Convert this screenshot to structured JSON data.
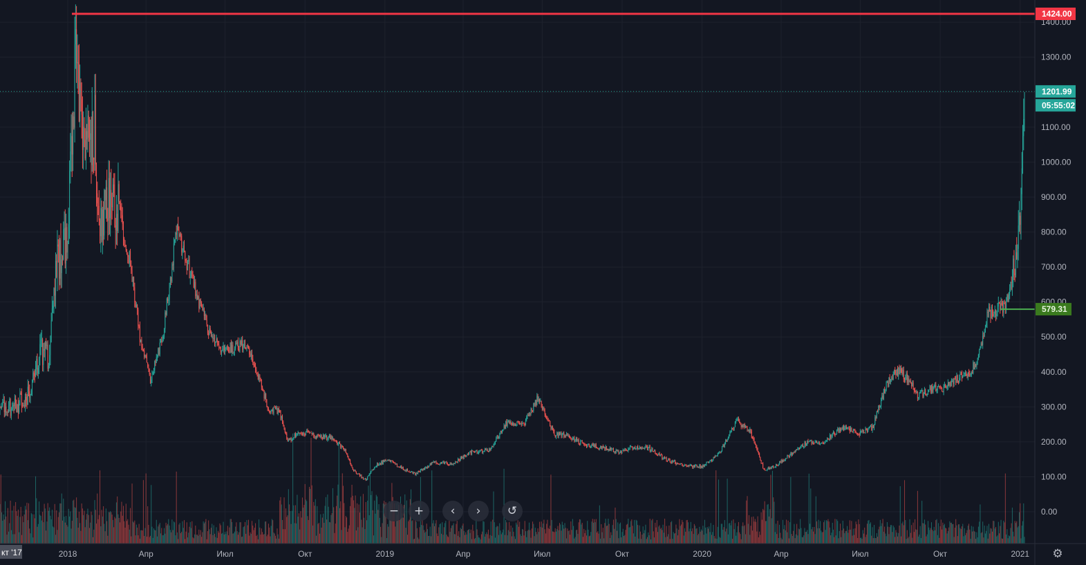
{
  "chart_data": {
    "type": "candlestick",
    "title": "",
    "xlabel": "",
    "ylabel": "",
    "ylim": [
      -95,
      1495
    ],
    "grid": true,
    "x_tick_labels": [
      "кт '17",
      "2018",
      "Апр",
      "Июл",
      "Окт",
      "2019",
      "Апр",
      "Июл",
      "Окт",
      "2020",
      "Апр",
      "Июл",
      "Окт",
      "2021"
    ],
    "y_tick_labels": [
      "0.00",
      "100.00",
      "200.00",
      "300.00",
      "400.00",
      "500.00",
      "600.00",
      "700.00",
      "800.00",
      "900.00",
      "1000.00",
      "1100.00",
      "1200.00",
      "1300.00",
      "1400.00"
    ],
    "price_trend": [
      [
        "2017-10-15",
        295
      ],
      [
        "2017-11-01",
        300
      ],
      [
        "2017-11-15",
        330
      ],
      [
        "2017-12-01",
        460
      ],
      [
        "2017-12-10",
        440
      ],
      [
        "2017-12-20",
        720
      ],
      [
        "2017-12-31",
        760
      ],
      [
        "2018-01-10",
        1300
      ],
      [
        "2018-01-14",
        1150
      ],
      [
        "2018-01-22",
        1050
      ],
      [
        "2018-02-01",
        1100
      ],
      [
        "2018-02-06",
        780
      ],
      [
        "2018-02-15",
        900
      ],
      [
        "2018-02-28",
        870
      ],
      [
        "2018-03-15",
        700
      ],
      [
        "2018-03-25",
        500
      ],
      [
        "2018-04-06",
        380
      ],
      [
        "2018-04-20",
        500
      ],
      [
        "2018-05-01",
        700
      ],
      [
        "2018-05-06",
        810
      ],
      [
        "2018-05-20",
        700
      ],
      [
        "2018-06-01",
        600
      ],
      [
        "2018-06-12",
        520
      ],
      [
        "2018-06-25",
        460
      ],
      [
        "2018-07-10",
        470
      ],
      [
        "2018-07-25",
        480
      ],
      [
        "2018-08-10",
        380
      ],
      [
        "2018-08-20",
        290
      ],
      [
        "2018-09-01",
        290
      ],
      [
        "2018-09-12",
        200
      ],
      [
        "2018-09-25",
        230
      ],
      [
        "2018-10-10",
        220
      ],
      [
        "2018-11-01",
        210
      ],
      [
        "2018-11-15",
        180
      ],
      [
        "2018-11-25",
        120
      ],
      [
        "2018-12-10",
        90
      ],
      [
        "2018-12-20",
        130
      ],
      [
        "2019-01-05",
        150
      ],
      [
        "2019-01-20",
        125
      ],
      [
        "2019-02-05",
        108
      ],
      [
        "2019-02-25",
        140
      ],
      [
        "2019-03-20",
        138
      ],
      [
        "2019-04-10",
        170
      ],
      [
        "2019-05-01",
        175
      ],
      [
        "2019-05-20",
        250
      ],
      [
        "2019-06-10",
        250
      ],
      [
        "2019-06-25",
        320
      ],
      [
        "2019-07-01",
        300
      ],
      [
        "2019-07-15",
        220
      ],
      [
        "2019-08-01",
        215
      ],
      [
        "2019-08-20",
        190
      ],
      [
        "2019-09-15",
        180
      ],
      [
        "2019-09-25",
        170
      ],
      [
        "2019-10-15",
        185
      ],
      [
        "2019-11-01",
        182
      ],
      [
        "2019-11-20",
        150
      ],
      [
        "2019-12-15",
        130
      ],
      [
        "2020-01-01",
        130
      ],
      [
        "2020-01-20",
        165
      ],
      [
        "2020-02-10",
        260
      ],
      [
        "2020-02-25",
        230
      ],
      [
        "2020-03-12",
        120
      ],
      [
        "2020-03-25",
        130
      ],
      [
        "2020-04-15",
        170
      ],
      [
        "2020-05-01",
        200
      ],
      [
        "2020-05-20",
        200
      ],
      [
        "2020-06-10",
        240
      ],
      [
        "2020-06-30",
        225
      ],
      [
        "2020-07-15",
        240
      ],
      [
        "2020-07-25",
        320
      ],
      [
        "2020-08-05",
        390
      ],
      [
        "2020-08-15",
        400
      ],
      [
        "2020-08-25",
        380
      ],
      [
        "2020-09-05",
        330
      ],
      [
        "2020-09-20",
        350
      ],
      [
        "2020-10-05",
        350
      ],
      [
        "2020-10-20",
        380
      ],
      [
        "2020-11-05",
        400
      ],
      [
        "2020-11-15",
        450
      ],
      [
        "2020-11-25",
        570
      ],
      [
        "2020-12-05",
        580
      ],
      [
        "2020-12-15",
        590
      ],
      [
        "2020-12-28",
        730
      ],
      [
        "2021-01-04",
        1000
      ],
      [
        "2021-01-06",
        1201.99
      ]
    ],
    "high_level": {
      "label": "1424.00",
      "value": 1424.0,
      "color": "#f23645"
    },
    "last_price": {
      "label": "1201.99",
      "value": 1201.99,
      "countdown": "05:55:02",
      "color": "#26a69a"
    },
    "marker_level": {
      "label": "579.31",
      "value": 579.31,
      "color": "#3a7a1e"
    },
    "colors": {
      "up": "#26a69a",
      "down": "#ef5350",
      "background": "#131722",
      "grid": "#1e222d",
      "axis_text": "#b2b5be"
    }
  },
  "nav": {
    "zoom_out": "−",
    "zoom_in": "+",
    "scroll_left": "‹",
    "scroll_right": "›",
    "reset": "↺",
    "settings_icon": "⚙"
  }
}
